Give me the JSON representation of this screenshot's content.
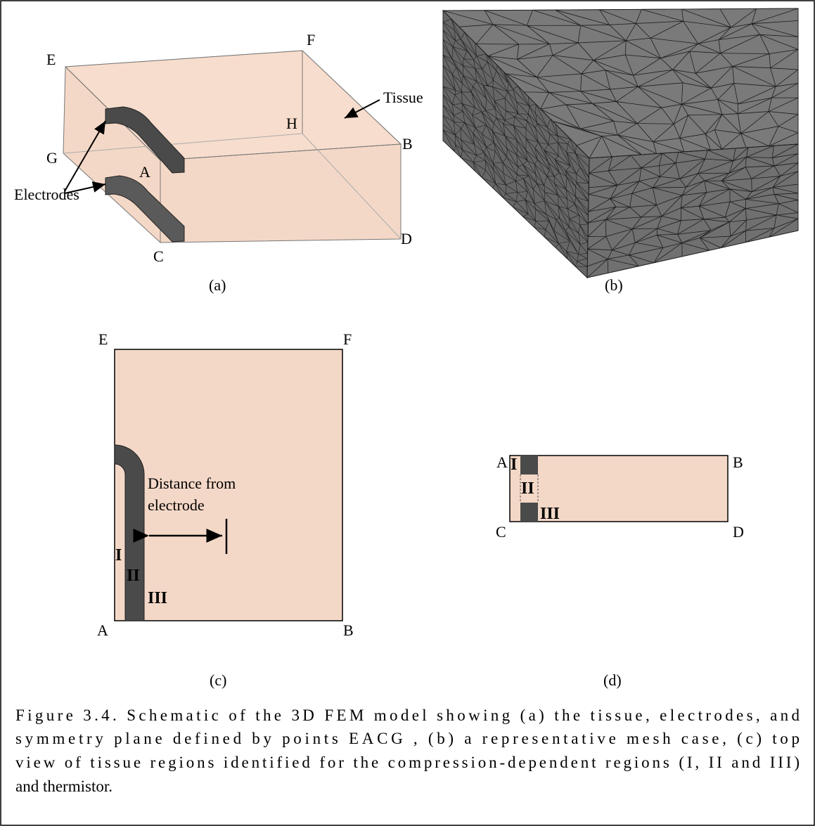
{
  "panel_a": {
    "points": {
      "E": "E",
      "F": "F",
      "H": "H",
      "G": "G",
      "A": "A",
      "B": "B",
      "C": "C",
      "D": "D"
    },
    "tissue": "Tissue",
    "electrodes": "Electrodes",
    "label": "(a)"
  },
  "panel_b": {
    "label": "(b)"
  },
  "panel_c": {
    "points": {
      "E": "E",
      "F": "F",
      "A": "A",
      "B": "B"
    },
    "distance_line1": "Distance from",
    "distance_line2": "electrode",
    "regions": [
      "I",
      "II",
      "III"
    ],
    "label": "(c)"
  },
  "panel_d": {
    "points": {
      "A": "A",
      "B": "B",
      "C": "C",
      "D": "D"
    },
    "regions": [
      "I",
      "II",
      "III"
    ],
    "label": "(d)"
  },
  "caption": {
    "lines": [
      "Figure 3.4. Schematic of the 3D FEM model showing (a) the tissue, electrodes, and",
      "symmetry plane defined by points EACG , (b) a representative mesh case, (c) top",
      "view of tissue regions identified for the compression-dependent regions (I, II and III)",
      "and thermistor."
    ]
  }
}
